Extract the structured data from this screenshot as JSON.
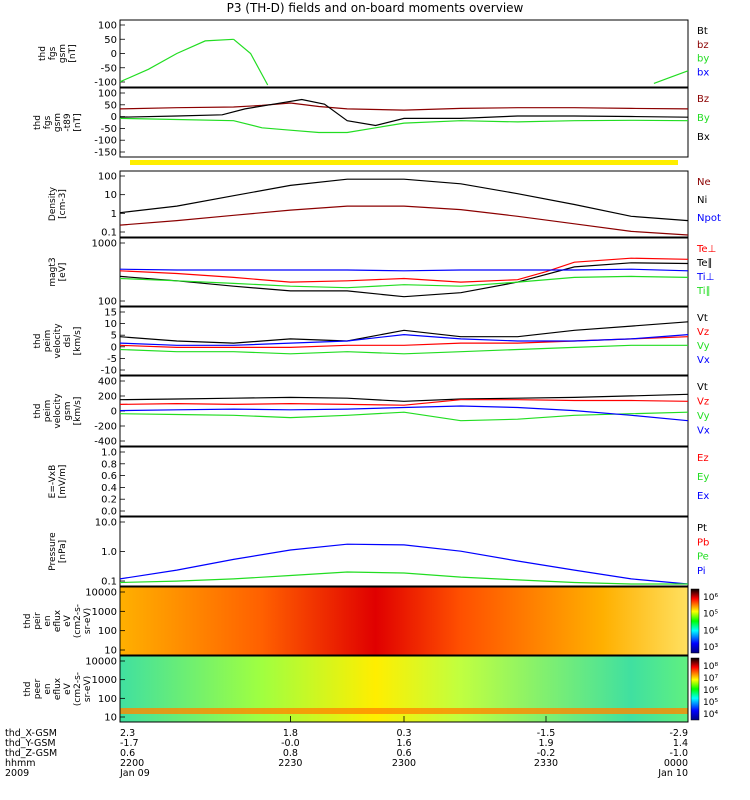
{
  "page": {
    "title": "P3 (TH-D) fields and on-board moments overview"
  },
  "colors": {
    "black": "#000000",
    "red": "#ff0000",
    "darkred": "#8b0000",
    "green": "#22dd22",
    "blue": "#0000ff",
    "yellow": "#ffee00"
  },
  "panels": [
    {
      "id": "fgs",
      "ylabel": [
        "thd",
        "fgs",
        "gsm",
        "[nT]"
      ],
      "ticks": [
        "100",
        "50",
        "0",
        "-50",
        "-100"
      ],
      "legend": [
        {
          "text": "Bt",
          "color": "black"
        },
        {
          "text": "bz",
          "color": "darkred"
        },
        {
          "text": "by",
          "color": "green"
        },
        {
          "text": "bx",
          "color": "blue"
        }
      ]
    },
    {
      "id": "fgs2",
      "ylabel": [
        "thd",
        "fgs",
        "gsm",
        "-t89",
        "[nT]"
      ],
      "ticks": [
        "100",
        "50",
        "0",
        "-50",
        "-100",
        "-150"
      ],
      "legend": [
        {
          "text": "Bz",
          "color": "darkred"
        },
        {
          "text": "By",
          "color": "green"
        },
        {
          "text": "Bx",
          "color": "black"
        }
      ]
    },
    {
      "id": "density",
      "ylabel": [
        "Density",
        "[cm-3]"
      ],
      "ticks": [
        "100",
        "10",
        "1",
        "0.1"
      ],
      "legend": [
        {
          "text": "Ne",
          "color": "darkred"
        },
        {
          "text": "Ni",
          "color": "black"
        },
        {
          "text": "Npot",
          "color": "blue"
        }
      ]
    },
    {
      "id": "temp",
      "ylabel": [
        "magt3",
        "[eV]"
      ],
      "ticks": [
        "1000",
        "100"
      ],
      "legend": [
        {
          "text": "Te⊥",
          "color": "red"
        },
        {
          "text": "Te∥",
          "color": "black"
        },
        {
          "text": "Ti⊥",
          "color": "blue"
        },
        {
          "text": "Ti∥",
          "color": "green"
        }
      ]
    },
    {
      "id": "eesa_vel",
      "ylabel": [
        "thd",
        "peim",
        "velocity",
        "dsl",
        "[km/s]"
      ],
      "ticks": [
        "15",
        "10",
        "5",
        "0",
        "-5",
        "-10"
      ],
      "legend": [
        {
          "text": "Vt",
          "color": "black"
        },
        {
          "text": "Vz",
          "color": "red"
        },
        {
          "text": "Vy",
          "color": "green"
        },
        {
          "text": "Vx",
          "color": "blue"
        }
      ]
    },
    {
      "id": "iesa_vel",
      "ylabel": [
        "thd",
        "peim",
        "velocity",
        "gsm",
        "[km/s]"
      ],
      "ticks": [
        "400",
        "200",
        "0",
        "-200",
        "-400"
      ],
      "legend": [
        {
          "text": "Vt",
          "color": "black"
        },
        {
          "text": "Vz",
          "color": "red"
        },
        {
          "text": "Vy",
          "color": "green"
        },
        {
          "text": "Vx",
          "color": "blue"
        }
      ]
    },
    {
      "id": "exb",
      "ylabel": [
        "E=-VxB",
        "[mV/m]"
      ],
      "ticks": [
        "1.0",
        "0.8",
        "0.6",
        "0.4",
        "0.2",
        "0.0"
      ],
      "legend": [
        {
          "text": "Ez",
          "color": "red"
        },
        {
          "text": "Ey",
          "color": "green"
        },
        {
          "text": "Ex",
          "color": "blue"
        }
      ]
    },
    {
      "id": "pressure",
      "ylabel": [
        "Pressure",
        "[nPa]"
      ],
      "ticks": [
        "10.0",
        "1.0",
        "0.1"
      ],
      "legend": [
        {
          "text": "Pt",
          "color": "black"
        },
        {
          "text": "Pb",
          "color": "red"
        },
        {
          "text": "Pe",
          "color": "green"
        },
        {
          "text": "Pi",
          "color": "blue"
        }
      ]
    },
    {
      "id": "ion_spec",
      "ylabel": [
        "thd",
        "peir",
        "en",
        "eflux",
        "eV",
        "(cm2-s-",
        "sr-eV)"
      ],
      "ticks": [
        "10000",
        "1000",
        "100",
        "10"
      ],
      "colorbar": [
        "10⁶",
        "10⁵",
        "10⁴",
        "10³"
      ],
      "legend": []
    },
    {
      "id": "ele_spec",
      "ylabel": [
        "thd",
        "peer",
        "en",
        "eflux",
        "eV",
        "(cm2-s-",
        "sr-eV)"
      ],
      "ticks": [
        "10000",
        "1000",
        "100",
        "10"
      ],
      "colorbar": [
        "10⁸",
        "10⁷",
        "10⁶",
        "10⁵",
        "10⁴"
      ],
      "legend": []
    }
  ],
  "xaxis": {
    "rows": [
      {
        "label": "thd_X-GSM",
        "values": [
          "2.3",
          "1.8",
          "0.3",
          "-1.5",
          "-2.9"
        ]
      },
      {
        "label": "thd_Y-GSM",
        "values": [
          "-1.7",
          "-0.0",
          "1.6",
          "1.9",
          "1.4"
        ]
      },
      {
        "label": "thd_Z-GSM",
        "values": [
          "0.6",
          "0.8",
          "0.6",
          "-0.2",
          "-1.0"
        ]
      },
      {
        "label": "hhmm",
        "values": [
          "2200",
          "2230",
          "2300",
          "2330",
          "0000"
        ]
      },
      {
        "label": "2009",
        "values": [
          "Jan 09",
          "",
          "",
          "",
          "Jan 10"
        ]
      }
    ]
  },
  "chart_data": {
    "type": "line",
    "title": "P3 (TH-D) fields and on-board moments overview",
    "x_ticks": [
      "2200",
      "2230",
      "2300",
      "2330",
      "0000"
    ],
    "series_time_fraction": [
      0,
      0.1,
      0.2,
      0.3,
      0.4,
      0.5,
      0.6,
      0.7,
      0.8,
      0.9,
      1.0
    ],
    "panels": [
      {
        "id": "fgs",
        "ylim": [
          -100,
          100
        ],
        "series": [
          {
            "name": "by",
            "color": "green",
            "segments": [
              {
                "t": [
                  0.0,
                  0.05,
                  0.1,
                  0.15,
                  0.2
                ],
                "v": [
                  -90,
                  -50,
                  0,
                  40,
                  45
                ]
              },
              {
                "t": [
                  0.2,
                  0.23,
                  0.26
                ],
                "v": [
                  45,
                  0,
                  -100
                ]
              },
              {
                "t": [
                  0.94,
                  0.97,
                  1.0
                ],
                "v": [
                  -95,
                  -75,
                  -55
                ]
              }
            ]
          }
        ]
      },
      {
        "id": "fgs2",
        "ylim": [
          -175,
          100
        ],
        "series": [
          {
            "name": "Bz",
            "color": "darkred",
            "t": [
              0,
              0.1,
              0.2,
              0.25,
              0.3,
              0.35,
              0.4,
              0.5,
              0.6,
              0.7,
              0.8,
              0.9,
              1.0
            ],
            "v": [
              20,
              25,
              28,
              35,
              45,
              30,
              20,
              15,
              22,
              25,
              25,
              22,
              20
            ]
          },
          {
            "name": "Bx",
            "color": "black",
            "t": [
              0,
              0.1,
              0.18,
              0.22,
              0.27,
              0.32,
              0.36,
              0.4,
              0.45,
              0.5,
              0.6,
              0.7,
              0.8,
              0.9,
              1.0
            ],
            "v": [
              -15,
              -10,
              -5,
              20,
              40,
              60,
              40,
              -30,
              -50,
              -20,
              -20,
              -10,
              -10,
              -12,
              -15
            ]
          },
          {
            "name": "By",
            "color": "green",
            "t": [
              0,
              0.1,
              0.2,
              0.25,
              0.3,
              0.35,
              0.4,
              0.45,
              0.5,
              0.6,
              0.7,
              0.8,
              0.9,
              1.0
            ],
            "v": [
              -20,
              -25,
              -30,
              -60,
              -70,
              -80,
              -80,
              -60,
              -40,
              -30,
              -35,
              -30,
              -28,
              -30
            ]
          }
        ]
      },
      {
        "id": "density",
        "ylim": [
          0.1,
          100
        ],
        "log": true,
        "series": [
          {
            "name": "Ni",
            "color": "black",
            "t": [
              0,
              0.1,
              0.2,
              0.3,
              0.4,
              0.5,
              0.6,
              0.7,
              0.8,
              0.9,
              1.0
            ],
            "v": [
              1.2,
              2.5,
              8,
              25,
              50,
              50,
              30,
              10,
              3,
              0.8,
              0.5
            ]
          },
          {
            "name": "Ne",
            "color": "darkred",
            "t": [
              0,
              0.1,
              0.2,
              0.3,
              0.4,
              0.5,
              0.6,
              0.7,
              0.8,
              0.9,
              1.0
            ],
            "v": [
              0.3,
              0.5,
              0.9,
              1.6,
              2.5,
              2.5,
              1.7,
              0.8,
              0.35,
              0.15,
              0.1
            ]
          }
        ]
      },
      {
        "id": "temp",
        "ylim": [
          100,
          1000
        ],
        "log": true,
        "series": [
          {
            "name": "Te⊥",
            "color": "red",
            "t": [
              0,
              0.1,
              0.2,
              0.3,
              0.4,
              0.5,
              0.6,
              0.7,
              0.75,
              0.8,
              0.9,
              1.0
            ],
            "v": [
              330,
              300,
              260,
              220,
              230,
              250,
              220,
              240,
              320,
              450,
              520,
              500
            ]
          },
          {
            "name": "Te∥",
            "color": "black",
            "t": [
              0,
              0.1,
              0.2,
              0.3,
              0.4,
              0.5,
              0.6,
              0.7,
              0.8,
              0.9,
              1.0
            ],
            "v": [
              270,
              230,
              190,
              160,
              160,
              130,
              150,
              220,
              380,
              440,
              430
            ]
          },
          {
            "name": "Ti⊥",
            "color": "blue",
            "t": [
              0,
              0.1,
              0.2,
              0.3,
              0.4,
              0.5,
              0.6,
              0.7,
              0.8,
              0.9,
              1.0
            ],
            "v": [
              350,
              340,
              340,
              340,
              340,
              330,
              340,
              340,
              340,
              350,
              330
            ]
          },
          {
            "name": "Ti∥",
            "color": "green",
            "t": [
              0,
              0.1,
              0.2,
              0.3,
              0.4,
              0.5,
              0.6,
              0.7,
              0.8,
              0.9,
              1.0
            ],
            "v": [
              250,
              230,
              210,
              190,
              180,
              200,
              190,
              220,
              260,
              270,
              260
            ]
          }
        ]
      },
      {
        "id": "eesa_vel",
        "ylim": [
          -12,
          18
        ],
        "series": [
          {
            "name": "Vt",
            "color": "black",
            "t": [
              0,
              0.1,
              0.2,
              0.3,
              0.4,
              0.5,
              0.6,
              0.7,
              0.8,
              0.9,
              1.0
            ],
            "v": [
              5,
              3,
              2,
              4,
              3,
              8,
              5,
              5,
              8,
              10,
              12
            ]
          },
          {
            "name": "Vz",
            "color": "red",
            "t": [
              0,
              0.1,
              0.2,
              0.3,
              0.4,
              0.5,
              0.6,
              0.7,
              0.8,
              0.9,
              1.0
            ],
            "v": [
              1,
              0,
              0,
              0,
              1,
              1,
              2,
              2,
              3,
              4,
              5
            ]
          },
          {
            "name": "Vy",
            "color": "green",
            "t": [
              0,
              0.1,
              0.2,
              0.3,
              0.4,
              0.5,
              0.6,
              0.7,
              0.8,
              0.9,
              1.0
            ],
            "v": [
              -1,
              -2,
              -2,
              -3,
              -2,
              -3,
              -2,
              -1,
              0,
              1,
              1
            ]
          },
          {
            "name": "Vx",
            "color": "blue",
            "t": [
              0,
              0.1,
              0.2,
              0.3,
              0.4,
              0.5,
              0.6,
              0.7,
              0.8,
              0.9,
              1.0
            ],
            "v": [
              2,
              1,
              1,
              2,
              3,
              6,
              4,
              3,
              3,
              4,
              6
            ]
          }
        ]
      },
      {
        "id": "iesa_vel",
        "ylim": [
          -450,
          400
        ],
        "series": [
          {
            "name": "Vt",
            "color": "black",
            "t": [
              0,
              0.1,
              0.2,
              0.3,
              0.4,
              0.5,
              0.6,
              0.7,
              0.8,
              0.9,
              1.0
            ],
            "v": [
              120,
              130,
              140,
              150,
              140,
              100,
              130,
              140,
              150,
              170,
              190
            ]
          },
          {
            "name": "Vz",
            "color": "red",
            "t": [
              0,
              0.1,
              0.2,
              0.3,
              0.4,
              0.5,
              0.6,
              0.7,
              0.8,
              0.9,
              1.0
            ],
            "v": [
              60,
              70,
              60,
              70,
              60,
              50,
              120,
              120,
              110,
              110,
              100
            ]
          },
          {
            "name": "Vy",
            "color": "green",
            "t": [
              0,
              0.1,
              0.2,
              0.3,
              0.4,
              0.5,
              0.6,
              0.7,
              0.8,
              0.9,
              1.0
            ],
            "v": [
              -60,
              -70,
              -80,
              -110,
              -80,
              -40,
              -150,
              -130,
              -80,
              -60,
              -40
            ]
          },
          {
            "name": "Vx",
            "color": "blue",
            "t": [
              0,
              0.1,
              0.2,
              0.3,
              0.4,
              0.5,
              0.6,
              0.7,
              0.8,
              0.9,
              1.0
            ],
            "v": [
              -20,
              -10,
              0,
              -10,
              0,
              20,
              40,
              20,
              -20,
              -80,
              -150
            ]
          }
        ]
      },
      {
        "id": "exb",
        "ylim": [
          0,
          1
        ],
        "series": []
      },
      {
        "id": "pressure",
        "ylim": [
          0.03,
          20
        ],
        "log": true,
        "series": [
          {
            "name": "Pi",
            "color": "blue",
            "t": [
              0,
              0.1,
              0.2,
              0.3,
              0.4,
              0.5,
              0.6,
              0.7,
              0.8,
              0.9,
              1.0
            ],
            "v": [
              0.05,
              0.12,
              0.35,
              0.9,
              1.6,
              1.5,
              0.8,
              0.3,
              0.12,
              0.05,
              0.03
            ]
          },
          {
            "name": "Pe",
            "color": "green",
            "t": [
              0,
              0.1,
              0.2,
              0.3,
              0.4,
              0.5,
              0.6,
              0.7,
              0.8,
              0.9,
              1.0
            ],
            "v": [
              0.035,
              0.04,
              0.05,
              0.07,
              0.1,
              0.09,
              0.06,
              0.045,
              0.035,
              0.03,
              0.03
            ]
          }
        ]
      }
    ]
  }
}
